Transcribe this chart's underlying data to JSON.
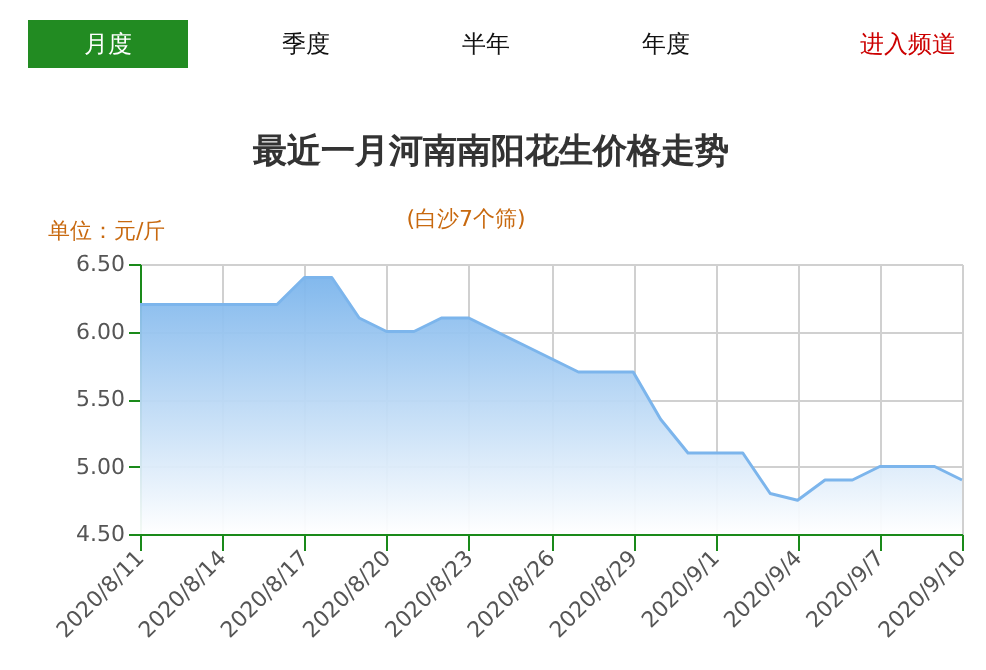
{
  "chart_data": {
    "type": "area",
    "title": "最近一月河南南阳花生价格走势",
    "subtitle": "(白沙7个筛)",
    "ylabel": "单位：元/斤",
    "annotations": [
      "月度",
      "季度",
      "半年",
      "年度",
      "进入频道"
    ],
    "x": [
      "2020-08-11",
      "2020-08-12",
      "2020-08-13",
      "2020-08-14",
      "2020-08-15",
      "2020-08-16",
      "2020-08-17",
      "2020-08-18",
      "2020-08-19",
      "2020-08-20",
      "2020-08-21",
      "2020-08-22",
      "2020-08-23",
      "2020-08-24",
      "2020-08-25",
      "2020-08-26",
      "2020-08-27",
      "2020-08-28",
      "2020-08-29",
      "2020-08-30",
      "2020-08-31",
      "2020-09-01",
      "2020-09-02",
      "2020-09-03",
      "2020-09-04",
      "2020-09-05",
      "2020-09-06",
      "2020-09-07",
      "2020-09-08",
      "2020-09-09",
      "2020-09-10"
    ],
    "series": [
      {
        "color": "#7cb5ec",
        "values": [
          6.2,
          6.2,
          6.2,
          6.2,
          6.2,
          6.2,
          6.4,
          6.4,
          6.1,
          6.0,
          6.0,
          6.1,
          6.1,
          6.0,
          5.9,
          5.8,
          5.7,
          5.7,
          5.7,
          5.35,
          5.1,
          5.1,
          5.1,
          4.8,
          4.75,
          4.9,
          4.9,
          5.0,
          5.0,
          5.0,
          4.9
        ]
      }
    ],
    "xlim": [
      "2020-08-11",
      "2020-09-10"
    ],
    "xticks": [
      {
        "value": "2020-08-11",
        "label": "2020/8/11"
      },
      {
        "value": "2020-08-14",
        "label": "2020/8/14"
      },
      {
        "value": "2020-08-17",
        "label": "2020/8/17"
      },
      {
        "value": "2020-08-20",
        "label": "2020/8/20"
      },
      {
        "value": "2020-08-23",
        "label": "2020/8/23"
      },
      {
        "value": "2020-08-26",
        "label": "2020/8/26"
      },
      {
        "value": "2020-08-29",
        "label": "2020/8/29"
      },
      {
        "value": "2020-09-01",
        "label": "2020/9/1"
      },
      {
        "value": "2020-09-04",
        "label": "2020/9/4"
      },
      {
        "value": "2020-09-07",
        "label": "2020/9/7"
      },
      {
        "value": "2020-09-10",
        "label": "2020/9/10"
      }
    ],
    "ylim": [
      4.5,
      6.5
    ],
    "yticks": [
      {
        "value": 4.5,
        "label": "4.50"
      },
      {
        "value": 5.0,
        "label": "5.00"
      },
      {
        "value": 5.5,
        "label": "5.50"
      },
      {
        "value": 6.0,
        "label": "6.00"
      },
      {
        "value": 6.5,
        "label": "6.50"
      }
    ],
    "grid": true,
    "marker": "none"
  }
}
